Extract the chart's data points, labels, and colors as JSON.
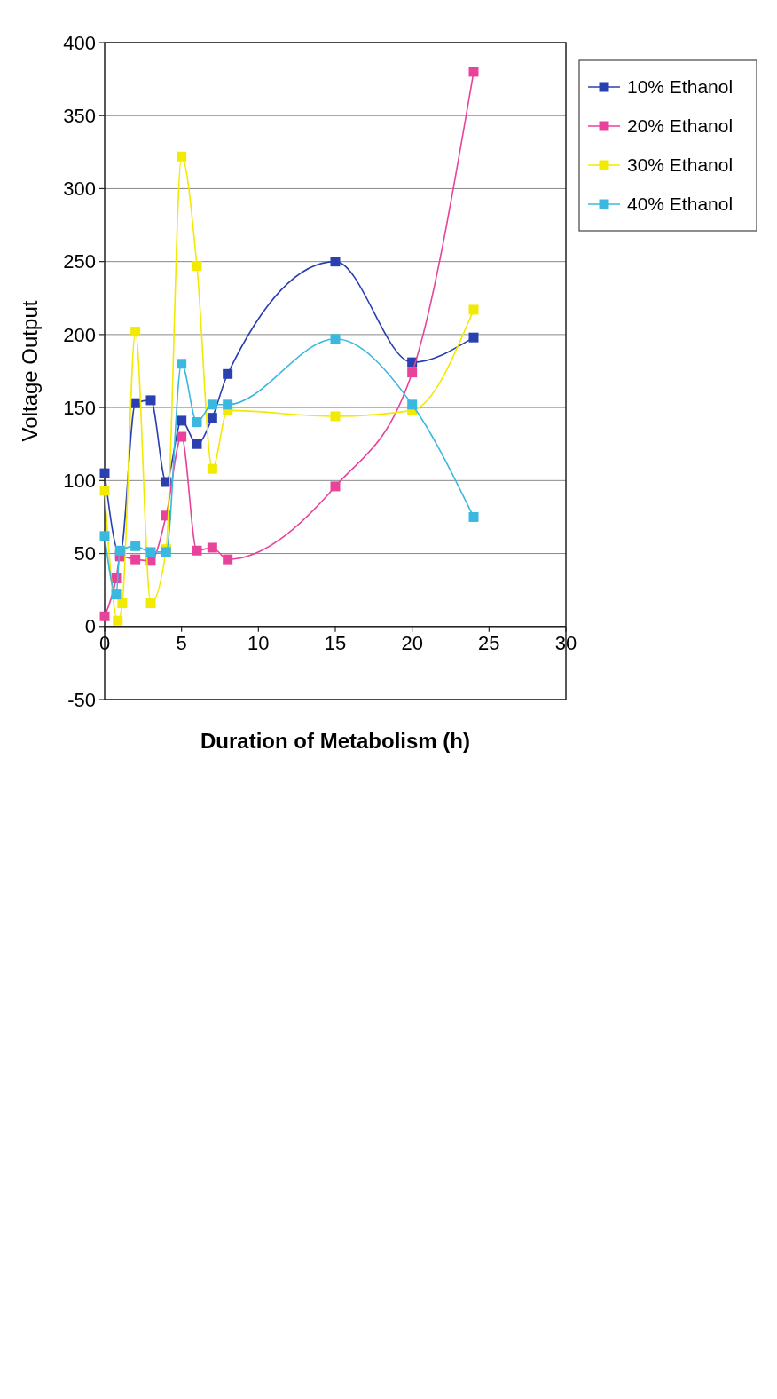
{
  "chart_data": {
    "type": "line",
    "xlabel": "Duration of Metabolism (h)",
    "ylabel": "Voltage Output",
    "xlim": [
      0,
      30
    ],
    "xticks": [
      0,
      5,
      10,
      15,
      20,
      25,
      30
    ],
    "ylim": [
      -50,
      400
    ],
    "yticks": [
      -50,
      0,
      50,
      100,
      150,
      200,
      250,
      300,
      350,
      400
    ],
    "grid": "y",
    "legend": "right",
    "marker": "square",
    "line_style": "solid",
    "series": [
      {
        "name": "10% Ethanol",
        "color": "#2a3fb0",
        "x": [
          0,
          1,
          2,
          3,
          4,
          5,
          6,
          7,
          8,
          15,
          20,
          24
        ],
        "values": [
          105,
          49,
          153,
          155,
          99,
          141,
          125,
          143,
          173,
          250,
          181,
          198
        ]
      },
      {
        "name": "20% Ethanol",
        "color": "#e8429a",
        "x": [
          0,
          0.75,
          1,
          2,
          3,
          4,
          5,
          6,
          7,
          8,
          15,
          20,
          24
        ],
        "values": [
          7,
          33,
          48,
          46,
          45,
          76,
          130,
          52,
          54,
          46,
          96,
          174,
          380
        ]
      },
      {
        "name": "30% Ethanol",
        "color": "#f2ea00",
        "x": [
          0,
          0.85,
          1.15,
          2,
          3,
          4,
          5,
          6,
          7,
          8,
          15,
          20,
          24
        ],
        "values": [
          93,
          4,
          16,
          202,
          16,
          53,
          322,
          247,
          108,
          148,
          144,
          148,
          217
        ]
      },
      {
        "name": "40% Ethanol",
        "color": "#3bb8e0",
        "x": [
          0,
          0.75,
          1,
          2,
          3,
          4,
          5,
          6,
          7,
          8,
          15,
          20,
          24
        ],
        "values": [
          62,
          22,
          52,
          55,
          51,
          51,
          180,
          140,
          152,
          152,
          197,
          152,
          75
        ]
      }
    ]
  }
}
